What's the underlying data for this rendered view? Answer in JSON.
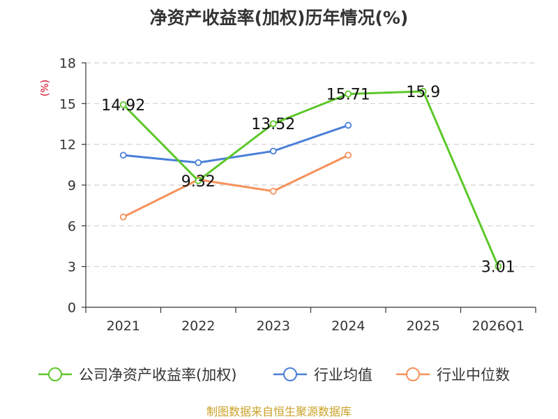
{
  "chart_data": {
    "type": "line",
    "title": "净资产收益率(加权)历年情况(%)",
    "ylabel": "(%)",
    "xlabel": "",
    "categories": [
      "2021",
      "2022",
      "2023",
      "2024",
      "2025",
      "2026Q1"
    ],
    "ylim": [
      0,
      18
    ],
    "yticks": [
      0,
      3,
      6,
      9,
      12,
      15,
      18
    ],
    "grid": true,
    "legend_position": "bottom",
    "series": [
      {
        "name": "公司净资产收益率(加权)",
        "color": "#5cc72a",
        "values": [
          14.92,
          9.32,
          13.52,
          15.71,
          15.9,
          3.01
        ],
        "labels": [
          "14.92",
          "9.32",
          "13.52",
          "15.71",
          "15.9",
          "3.01"
        ]
      },
      {
        "name": "行业均值",
        "color": "#4a7fd8",
        "values": [
          11.2,
          10.65,
          11.5,
          13.4,
          null,
          null
        ]
      },
      {
        "name": "行业中位数",
        "color": "#f5915a",
        "values": [
          6.65,
          9.4,
          8.55,
          11.2,
          null,
          null
        ]
      }
    ],
    "source": "制图数据来自恒生聚源数据库"
  }
}
